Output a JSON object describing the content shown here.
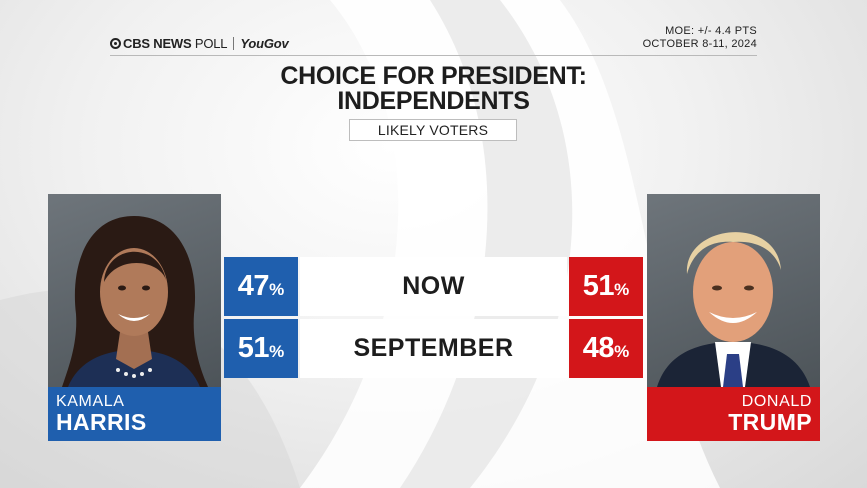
{
  "header": {
    "brand_cbs": "CBS NEWS",
    "brand_poll": "POLL",
    "brand_partner": "YouGov",
    "moe": "MOE: +/- 4.4 PTS",
    "dates": "OCTOBER 8-11, 2024"
  },
  "title_line1": "CHOICE FOR PRESIDENT:",
  "title_line2": "INDEPENDENTS",
  "subtitle": "LIKELY VOTERS",
  "candidates": {
    "left": {
      "first": "KAMALA",
      "last": "HARRIS",
      "color": "#1f5fae",
      "icon": "harris-photo"
    },
    "right": {
      "first": "DONALD",
      "last": "TRUMP",
      "color": "#d3161a",
      "icon": "trump-photo"
    }
  },
  "percent_sign": "%",
  "chart_data": {
    "type": "table",
    "title": "CHOICE FOR PRESIDENT: INDEPENDENTS",
    "subtitle": "LIKELY VOTERS",
    "categories": [
      "NOW",
      "SEPTEMBER"
    ],
    "series": [
      {
        "name": "KAMALA HARRIS",
        "values": [
          47,
          51
        ],
        "color": "#1f5fae"
      },
      {
        "name": "DONALD TRUMP",
        "values": [
          51,
          48
        ],
        "color": "#d3161a"
      }
    ],
    "unit": "%"
  }
}
